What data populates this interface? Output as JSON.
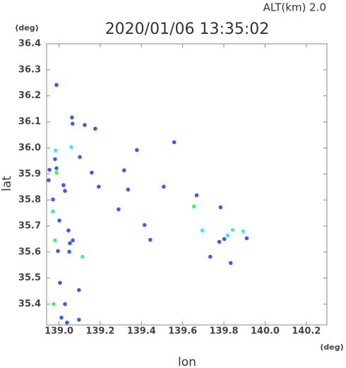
{
  "chart_data": {
    "type": "scatter",
    "title": "2020/01/06 13:35:02",
    "subtitle": "ALT(km)  2.0",
    "x_label": "lon",
    "y_label": "lat",
    "x_unit": "(deg)",
    "y_unit": "(deg)",
    "xlim": [
      138.94,
      140.3
    ],
    "ylim": [
      35.32,
      36.4
    ],
    "xticks": [
      {
        "value": 139,
        "label": "139.0"
      },
      139.2,
      139.4,
      139.6,
      139.8,
      {
        "value": 140,
        "label": "140.0"
      },
      140.2
    ],
    "yticks": [
      {
        "value": 35.4,
        "label": "35.4"
      },
      35.5,
      35.6,
      35.7,
      35.8,
      35.9,
      {
        "value": 36,
        "label": "36.0"
      },
      36.1,
      36.2,
      36.3,
      36.4
    ],
    "series": [
      {
        "color": "#3a5cf0",
        "x": [
          139.063,
          139.066,
          139.125,
          139.176,
          138.981,
          138.954,
          138.988,
          138.95,
          139.022,
          139.029,
          139.101,
          139.159,
          139.316,
          139.335,
          139.508,
          139.668,
          139.784,
          139.289,
          139.002,
          139.046,
          139.067,
          138.995,
          139.05,
          139.053,
          139.005,
          139.097,
          139.029,
          139.097,
          139.012,
          139.039,
          138.971,
          139.443,
          139.778,
          139.802,
          139.734,
          139.833,
          139.911,
          139.559,
          139.378,
          139.193,
          139.415,
          138.988
        ],
        "values": [
          36.117,
          36.093,
          36.088,
          36.074,
          35.957,
          35.916,
          35.922,
          35.876,
          35.857,
          35.835,
          35.965,
          35.905,
          35.914,
          35.84,
          35.851,
          35.818,
          35.772,
          35.764,
          35.721,
          35.683,
          35.645,
          35.604,
          35.601,
          35.634,
          35.482,
          35.454,
          35.4,
          35.34,
          35.348,
          35.329,
          35.802,
          35.647,
          35.639,
          35.65,
          35.582,
          35.558,
          35.653,
          36.022,
          35.992,
          35.851,
          35.704,
          36.242
        ]
      },
      {
        "color": "#40e8f0",
        "x": [
          139.06,
          139.114,
          139.696,
          139.819,
          139.843,
          139.894,
          138.984
        ],
        "values": [
          36.003,
          35.582,
          35.683,
          35.664,
          35.685,
          35.68,
          35.99
        ]
      },
      {
        "color": "#40ee80",
        "x": [
          139.655,
          138.981,
          138.974,
          138.971,
          138.988
        ],
        "values": [
          35.775,
          35.645,
          35.4,
          35.756,
          35.905
        ]
      }
    ]
  }
}
